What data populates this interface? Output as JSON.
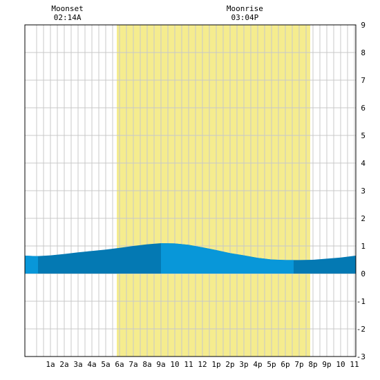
{
  "chart_data": {
    "type": "area",
    "x_tick_labels": [
      "1a",
      "2a",
      "3a",
      "4a",
      "5a",
      "6a",
      "7a",
      "8a",
      "9a",
      "10",
      "11",
      "12",
      "1p",
      "2p",
      "3p",
      "4p",
      "5p",
      "6p",
      "7p",
      "8p",
      "9p",
      "10",
      "11"
    ],
    "y_ticks": [
      9,
      8,
      7,
      6,
      5,
      4,
      3,
      2,
      1,
      0,
      -1,
      -2,
      -3
    ],
    "x_range_hours": [
      -0.85,
      23.1
    ],
    "ylim": [
      -3,
      9
    ],
    "grid": true,
    "daylight_hours": [
      5.8,
      19.8
    ],
    "tide_series": {
      "x_hours": [
        -0.85,
        0,
        1,
        2,
        3,
        4,
        5,
        6,
        7,
        8,
        9,
        10,
        11,
        12,
        13,
        14,
        15,
        16,
        17,
        18,
        19,
        20,
        21,
        22,
        23.1
      ],
      "y_ft": [
        0.65,
        0.63,
        0.66,
        0.71,
        0.77,
        0.82,
        0.87,
        0.93,
        1.0,
        1.06,
        1.1,
        1.09,
        1.04,
        0.95,
        0.85,
        0.74,
        0.66,
        0.57,
        0.51,
        0.49,
        0.49,
        0.5,
        0.54,
        0.58,
        0.65
      ]
    },
    "shade_bands_hours": [
      [
        -0.85,
        0.1
      ],
      [
        9,
        18.6
      ]
    ],
    "moon_events": [
      {
        "label": "Moonset",
        "time": "02:14A",
        "hour": 2.23
      },
      {
        "label": "Moonrise",
        "time": "03:04P",
        "hour": 15.07
      }
    ]
  },
  "colors": {
    "day_fill": "#f5ec8e",
    "grid": "#c8c8c8",
    "tide_dark": "#0479b3",
    "tide_light": "#0897d9",
    "border": "#000000"
  }
}
